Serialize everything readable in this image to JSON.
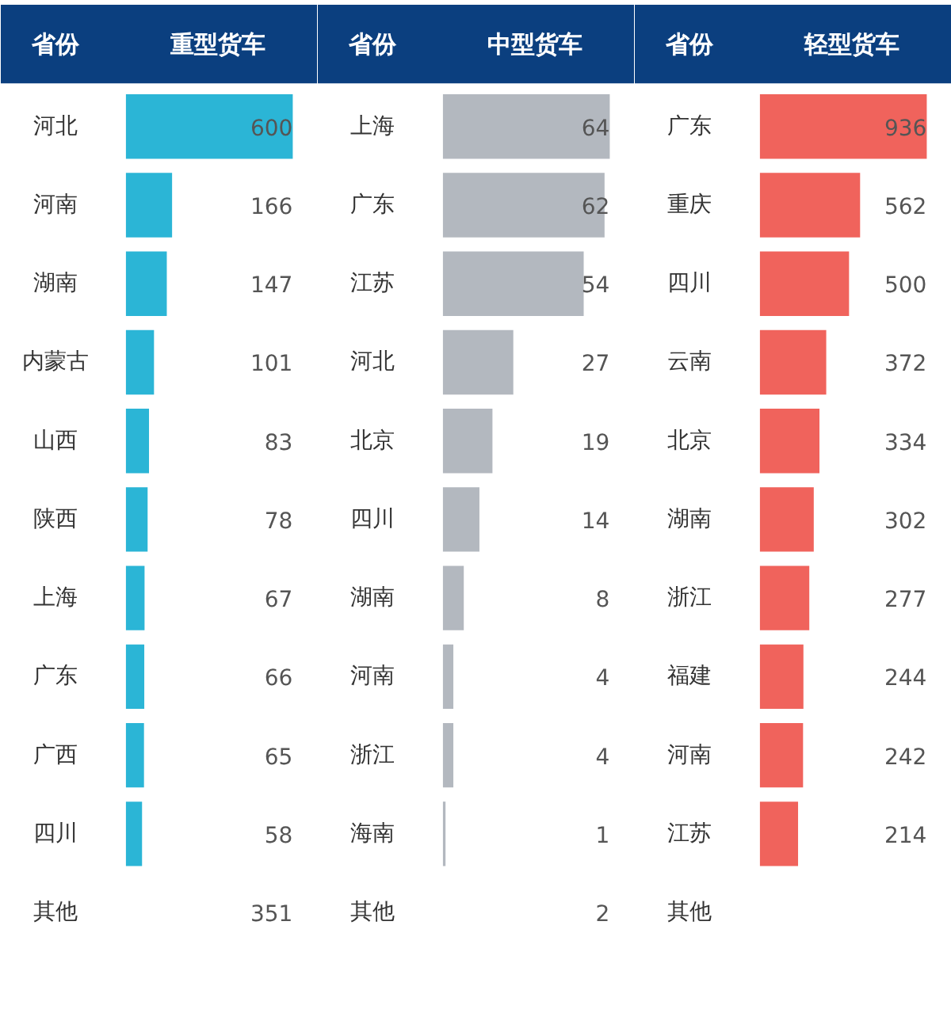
{
  "chart_data": [
    {
      "type": "bar",
      "orientation": "horizontal",
      "title": "重型货车",
      "ylabel": "省份",
      "color": "#2bb5d6",
      "categories": [
        "河北",
        "河南",
        "湖南",
        "内蒙古",
        "山西",
        "陕西",
        "上海",
        "广东",
        "广西",
        "四川",
        "其他"
      ],
      "values": [
        600,
        166,
        147,
        101,
        83,
        78,
        67,
        66,
        65,
        58,
        null
      ],
      "value_labels": [
        "600",
        "166",
        "147",
        "101",
        "83",
        "78",
        "67",
        "66",
        "65",
        "58",
        "351"
      ]
    },
    {
      "type": "bar",
      "orientation": "horizontal",
      "title": "中型货车",
      "ylabel": "省份",
      "color": "#b3b8bf",
      "categories": [
        "上海",
        "广东",
        "江苏",
        "河北",
        "北京",
        "四川",
        "湖南",
        "河南",
        "浙江",
        "海南",
        "其他"
      ],
      "values": [
        64,
        62,
        54,
        27,
        19,
        14,
        8,
        4,
        4,
        1,
        null
      ],
      "value_labels": [
        "64",
        "62",
        "54",
        "27",
        "19",
        "14",
        "8",
        "4",
        "4",
        "1",
        "2"
      ]
    },
    {
      "type": "bar",
      "orientation": "horizontal",
      "title": "轻型货车",
      "ylabel": "省份",
      "color": "#f0635c",
      "categories": [
        "广东",
        "重庆",
        "四川",
        "云南",
        "北京",
        "湖南",
        "浙江",
        "福建",
        "河南",
        "江苏",
        "其他"
      ],
      "values": [
        936,
        562,
        500,
        372,
        334,
        302,
        277,
        244,
        242,
        214,
        null
      ],
      "value_labels": [
        "936",
        "562",
        "500",
        "372",
        "334",
        "302",
        "277",
        "244",
        "242",
        "214",
        null
      ]
    }
  ]
}
